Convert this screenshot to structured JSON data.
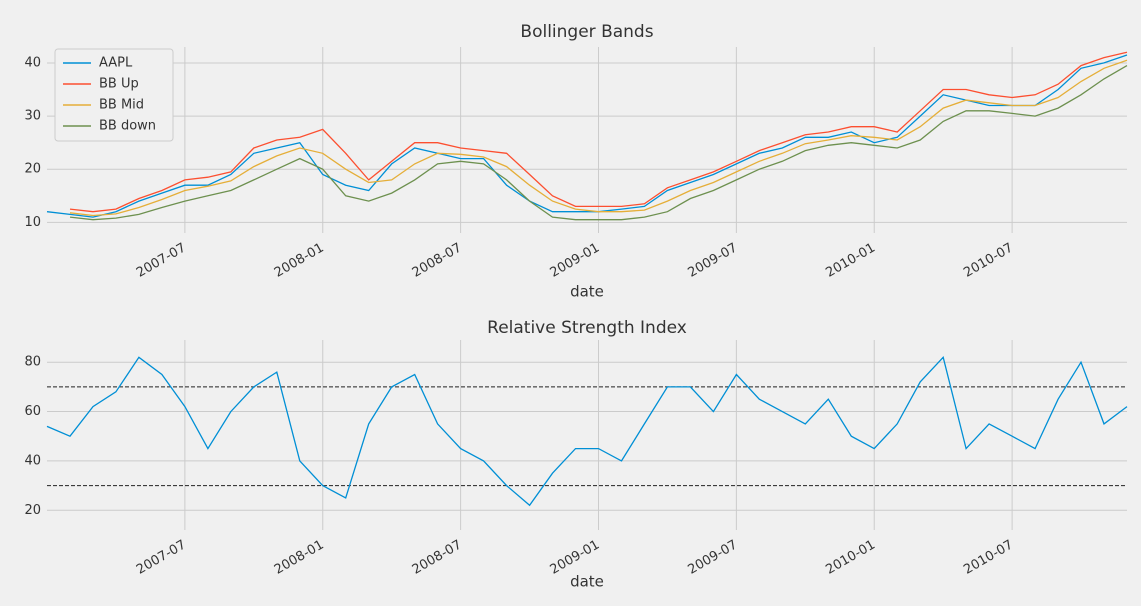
{
  "chart_data": [
    {
      "type": "line",
      "title": "Bollinger Bands",
      "xlabel": "date",
      "x": [
        "2007-01",
        "2007-02",
        "2007-03",
        "2007-04",
        "2007-05",
        "2007-06",
        "2007-07",
        "2007-08",
        "2007-09",
        "2007-10",
        "2007-11",
        "2007-12",
        "2008-01",
        "2008-02",
        "2008-03",
        "2008-04",
        "2008-05",
        "2008-06",
        "2008-07",
        "2008-08",
        "2008-09",
        "2008-10",
        "2008-11",
        "2008-12",
        "2009-01",
        "2009-02",
        "2009-03",
        "2009-04",
        "2009-05",
        "2009-06",
        "2009-07",
        "2009-08",
        "2009-09",
        "2009-10",
        "2009-11",
        "2009-12",
        "2010-01",
        "2010-02",
        "2010-03",
        "2010-04",
        "2010-05",
        "2010-06",
        "2010-07",
        "2010-08",
        "2010-09",
        "2010-10",
        "2010-11",
        "2010-12"
      ],
      "series": [
        {
          "name": "AAPL",
          "color": "#008fd5",
          "values": [
            12,
            11.5,
            11,
            12,
            14,
            15.5,
            17,
            17,
            19,
            23,
            24,
            25,
            19,
            17,
            16,
            21,
            24,
            23,
            22,
            22,
            17,
            14,
            12,
            12,
            12,
            12.5,
            13,
            16,
            17.5,
            19,
            21,
            23,
            24,
            26,
            26,
            27,
            25,
            26,
            30,
            34,
            33,
            32,
            32,
            32,
            35,
            39,
            40,
            41.5
          ]
        },
        {
          "name": "BB Up",
          "color": "#fc4f30",
          "values": [
            null,
            12.5,
            12,
            12.5,
            14.5,
            16,
            18,
            18.5,
            19.5,
            24,
            25.5,
            26,
            27.5,
            23,
            18,
            21.5,
            25,
            25,
            24,
            23.5,
            23,
            19,
            15,
            13,
            13,
            13,
            13.5,
            16.5,
            18,
            19.5,
            21.5,
            23.5,
            25,
            26.5,
            27,
            28,
            28,
            27,
            31,
            35,
            35,
            34,
            33.5,
            34,
            36,
            39.5,
            41,
            42
          ]
        },
        {
          "name": "BB Mid",
          "color": "#e5ae38",
          "values": [
            null,
            11.8,
            11.3,
            11.6,
            12.8,
            14.3,
            16,
            16.8,
            17.8,
            20.5,
            22.5,
            24,
            23,
            20,
            17.5,
            18,
            21,
            23,
            22.8,
            22.3,
            20.5,
            17,
            14,
            12.5,
            12,
            12,
            12.3,
            14,
            16,
            17.5,
            19.5,
            21.5,
            23,
            24.8,
            25.5,
            26.3,
            26,
            25.5,
            28,
            31.5,
            33,
            32.5,
            32,
            32,
            33.5,
            36.5,
            39,
            40.5
          ]
        },
        {
          "name": "BB down",
          "color": "#6d904f",
          "values": [
            null,
            11,
            10.5,
            10.8,
            11.5,
            12.8,
            14,
            15,
            16,
            18,
            20,
            22,
            20,
            15,
            14,
            15.5,
            18,
            21,
            21.5,
            21,
            18,
            14,
            11,
            10.5,
            10.5,
            10.5,
            11,
            12,
            14.5,
            16,
            18,
            20,
            21.5,
            23.5,
            24.5,
            25,
            24.5,
            24,
            25.5,
            29,
            31,
            31,
            30.5,
            30,
            31.5,
            34,
            37,
            39.5
          ]
        }
      ],
      "xlim": [
        "2007-01",
        "2010-12"
      ],
      "xticks": [
        "2007-07",
        "2008-01",
        "2008-07",
        "2009-01",
        "2009-07",
        "2010-01",
        "2010-07"
      ],
      "ylim": [
        8,
        43
      ],
      "yticks": [
        10,
        20,
        30,
        40
      ],
      "grid": true,
      "legend": "upper left"
    },
    {
      "type": "line",
      "title": "Relative Strength Index",
      "xlabel": "date",
      "x": [
        "2007-01",
        "2007-02",
        "2007-03",
        "2007-04",
        "2007-05",
        "2007-06",
        "2007-07",
        "2007-08",
        "2007-09",
        "2007-10",
        "2007-11",
        "2007-12",
        "2008-01",
        "2008-02",
        "2008-03",
        "2008-04",
        "2008-05",
        "2008-06",
        "2008-07",
        "2008-08",
        "2008-09",
        "2008-10",
        "2008-11",
        "2008-12",
        "2009-01",
        "2009-02",
        "2009-03",
        "2009-04",
        "2009-05",
        "2009-06",
        "2009-07",
        "2009-08",
        "2009-09",
        "2009-10",
        "2009-11",
        "2009-12",
        "2010-01",
        "2010-02",
        "2010-03",
        "2010-04",
        "2010-05",
        "2010-06",
        "2010-07",
        "2010-08",
        "2010-09",
        "2010-10",
        "2010-11",
        "2010-12"
      ],
      "series": [
        {
          "color": "#008fd5",
          "values": [
            54,
            50,
            62,
            68,
            82,
            75,
            62,
            45,
            60,
            70,
            76,
            40,
            30,
            25,
            55,
            70,
            75,
            55,
            45,
            40,
            30,
            22,
            35,
            45,
            45,
            40,
            55,
            70,
            70,
            60,
            75,
            65,
            60,
            55,
            65,
            50,
            45,
            55,
            72,
            82,
            45,
            55,
            50,
            45,
            65,
            80,
            55,
            62
          ]
        }
      ],
      "hlines": [
        30,
        70
      ],
      "xlim": [
        "2007-01",
        "2010-12"
      ],
      "xticks": [
        "2007-07",
        "2008-01",
        "2008-07",
        "2009-01",
        "2009-07",
        "2010-01",
        "2010-07"
      ],
      "ylim": [
        12,
        89
      ],
      "yticks": [
        20,
        40,
        60,
        80
      ],
      "grid": true
    }
  ]
}
